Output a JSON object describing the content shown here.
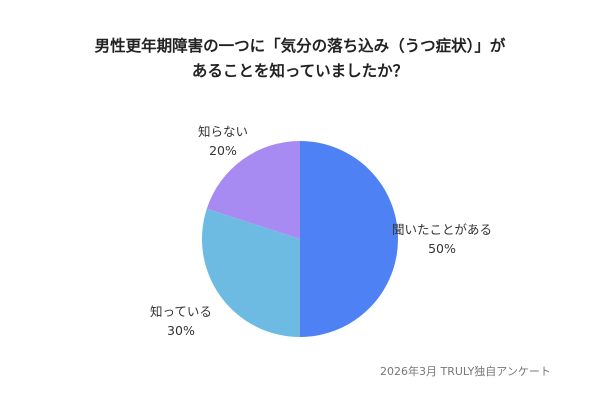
{
  "chart_data": {
    "type": "pie",
    "title_lines": [
      "男性更年期障害の一つに「気分の落ち込み（うつ症状）」が",
      "あることを知っていましたか？"
    ],
    "slices": [
      {
        "name": "聞いたことがある",
        "value": 50,
        "value_label": "50%",
        "color": "#4e82f4"
      },
      {
        "name": "知っている",
        "value": 30,
        "value_label": "30%",
        "color": "#6dbbe3"
      },
      {
        "name": "知らない",
        "value": 20,
        "value_label": "20%",
        "color": "#a78bf2"
      }
    ],
    "start": "12 o'clock",
    "direction": "clockwise"
  },
  "footer": {
    "source": "2026年3月  TRULY独自アンケート"
  }
}
